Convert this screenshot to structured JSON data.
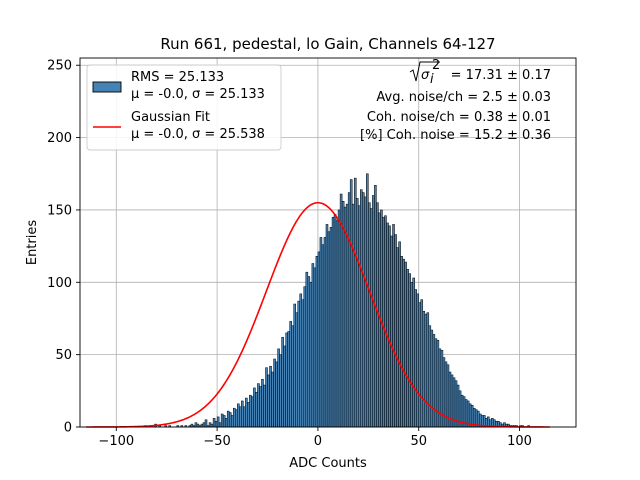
{
  "chart_data": {
    "type": "bar",
    "title": "Run 661, pedestal, lo Gain, Channels 64-127",
    "xlabel": "ADC Counts",
    "ylabel": "Entries",
    "xlim": [
      -118,
      128
    ],
    "ylim": [
      0,
      255
    ],
    "grid": true,
    "x_ticks": [
      -100,
      -50,
      0,
      50,
      100
    ],
    "x_tick_labels": [
      "−100",
      "−50",
      "0",
      "50",
      "100"
    ],
    "y_ticks": [
      0,
      50,
      100,
      150,
      200,
      250
    ],
    "y_tick_labels": [
      "0",
      "50",
      "100",
      "150",
      "200",
      "250"
    ],
    "histogram": {
      "name": "RMS = 25.133",
      "stats": "μ = -0.0, σ = 25.133",
      "color": "#4682b4",
      "edge_color": "#000000",
      "bin_width": 1,
      "bin_start": -115,
      "note": "values are counts per 1-ADC bin starting at bin_start",
      "values": [
        0,
        0,
        0,
        0,
        0,
        0,
        0,
        0,
        0,
        0,
        0,
        0,
        0,
        0,
        0,
        0,
        0,
        0,
        0,
        0,
        0,
        0,
        0,
        0,
        0,
        0,
        0,
        0,
        0,
        1,
        0,
        0,
        0,
        0,
        2,
        0,
        1,
        0,
        0,
        1,
        0,
        1,
        0,
        0,
        0,
        1,
        0,
        1,
        0,
        1,
        0,
        1,
        2,
        1,
        3,
        2,
        1,
        2,
        3,
        5,
        1,
        3,
        2,
        6,
        4,
        7,
        3,
        9,
        8,
        6,
        11,
        10,
        8,
        13,
        12,
        16,
        14,
        18,
        14,
        20,
        17,
        22,
        21,
        27,
        24,
        30,
        28,
        33,
        29,
        41,
        36,
        42,
        38,
        47,
        45,
        54,
        50,
        62,
        56,
        65,
        66,
        73,
        70,
        85,
        79,
        87,
        92,
        88,
        97,
        107,
        104,
        100,
        113,
        110,
        118,
        121,
        131,
        126,
        131,
        140,
        135,
        138,
        145,
        147,
        143,
        150,
        161,
        156,
        152,
        154,
        162,
        171,
        154,
        172,
        158,
        153,
        164,
        162,
        159,
        175,
        155,
        151,
        160,
        167,
        155,
        148,
        150,
        145,
        146,
        141,
        139,
        132,
        140,
        133,
        124,
        128,
        118,
        116,
        114,
        109,
        106,
        100,
        103,
        95,
        92,
        86,
        88,
        80,
        78,
        79,
        70,
        67,
        64,
        61,
        60,
        54,
        53,
        48,
        45,
        43,
        38,
        36,
        34,
        32,
        29,
        25,
        22,
        21,
        19,
        18,
        16,
        15,
        13,
        12,
        11,
        9,
        8,
        8,
        6,
        7,
        5,
        6,
        5,
        4,
        4,
        3,
        2,
        3,
        2,
        2,
        1,
        1,
        1,
        1,
        0,
        1,
        1,
        0,
        0,
        1,
        0,
        0,
        0,
        0,
        0,
        0,
        0,
        0,
        0,
        0,
        0,
        0,
        0,
        0,
        0
      ]
    },
    "fit": {
      "name": "Gaussian Fit",
      "stats": "μ = -0.0, σ = 25.538",
      "color": "#ff0000",
      "amplitude": 155,
      "mu": 0.0,
      "sigma": 25.538,
      "x_range": [
        -115,
        115
      ]
    },
    "legend": {
      "location": "upper-left",
      "entries": [
        {
          "label": "RMS = 25.133",
          "sublabel": "μ = -0.0, σ = 25.133",
          "kind": "patch",
          "color": "#4682b4"
        },
        {
          "label": "Gaussian Fit",
          "sublabel": "μ = -0.0, σ = 25.538",
          "kind": "line",
          "color": "#ff0000"
        }
      ]
    },
    "annotations": {
      "sqrt_sigma_label": "σ",
      "sqrt_sigma_sub": "i",
      "sqrt_sigma_sup": "2",
      "sqrt_sigma_value": "= 17.31 ± 0.17",
      "lines": [
        "Avg. noise/ch = 2.5 ± 0.03",
        "Coh. noise/ch = 0.38 ± 0.01",
        "[%] Coh. noise = 15.2 ± 0.36"
      ]
    }
  }
}
